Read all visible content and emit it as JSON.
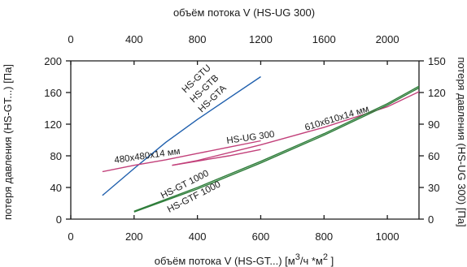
{
  "chart_data": {
    "type": "line",
    "title": "",
    "x_bottom": {
      "label_main": "объём  потока V  (HS-GT...) [м",
      "label_sup1": "3",
      "label_mid": "/ч *м",
      "label_sup2": "2",
      "label_end": " ]",
      "range": [
        0,
        1100
      ],
      "ticks": [
        0,
        200,
        400,
        600,
        800,
        1000
      ]
    },
    "x_top": {
      "label": "объём потока V (HS-UG 300)",
      "range": [
        0,
        2200
      ],
      "ticks": [
        0,
        400,
        800,
        1200,
        1600,
        2000
      ]
    },
    "y_left": {
      "label": "потеря давления (HS-GT...) [Па]",
      "range": [
        0,
        200
      ],
      "ticks": [
        0,
        40,
        80,
        120,
        160,
        200
      ]
    },
    "y_right": {
      "label": "потеря давления (HS-UG 300) [Па]",
      "range": [
        0,
        150
      ],
      "ticks": [
        0,
        30,
        60,
        90,
        120,
        150
      ]
    },
    "grid": false,
    "series": [
      {
        "name": "HS-GTU / HS-GTB / HS-GTA",
        "color": "#1f5fad",
        "axes": "bottom-left",
        "x": [
          100,
          200,
          300,
          400,
          500,
          600
        ],
        "y": [
          30,
          64,
          97,
          126,
          153,
          180
        ]
      },
      {
        "name": "480x480x14 мм",
        "color": "#c2407a",
        "axes": "bottom-left",
        "x": [
          100,
          200,
          300,
          400,
          500,
          600
        ],
        "y": [
          60,
          68,
          75,
          83,
          91,
          99
        ]
      },
      {
        "name": "HS-UG 300",
        "color": "#c2407a",
        "axes": "top-right",
        "x": [
          640,
          800,
          1000,
          1200
        ],
        "y": [
          51,
          55,
          60,
          66
        ]
      },
      {
        "name": "610x610x14 мм",
        "color": "#c2407a",
        "axes": "bottom-left",
        "x": [
          320,
          400,
          600,
          800,
          1000,
          1100
        ],
        "y": [
          68,
          74,
          94,
          116,
          142,
          161
        ]
      },
      {
        "name": "HS-GT 1000",
        "color": "#2e7d3a",
        "axes": "bottom-left",
        "x": [
          200,
          400,
          600,
          800,
          1000,
          1100
        ],
        "y": [
          10,
          40,
          73,
          108,
          146,
          168
        ]
      },
      {
        "name": "HS-GTF 1000",
        "color": "#2e7d3a",
        "axes": "bottom-left",
        "x": [
          200,
          400,
          600,
          800,
          1000,
          1100
        ],
        "y": [
          9,
          38,
          71,
          106,
          144,
          166
        ]
      }
    ],
    "labels": [
      {
        "text": "HS-GTU",
        "angle": -44
      },
      {
        "text": "HS-GTB",
        "angle": -44
      },
      {
        "text": "HS-GTA",
        "angle": -44
      },
      {
        "text": "480x480x14 мм",
        "angle": -8
      },
      {
        "text": "HS-UG 300",
        "angle": -8
      },
      {
        "text": "610x610x14 мм",
        "angle": -17
      },
      {
        "text": "HS-GT 1000",
        "angle": -27
      },
      {
        "text": "HS-GTF 1000",
        "angle": -27
      }
    ]
  }
}
